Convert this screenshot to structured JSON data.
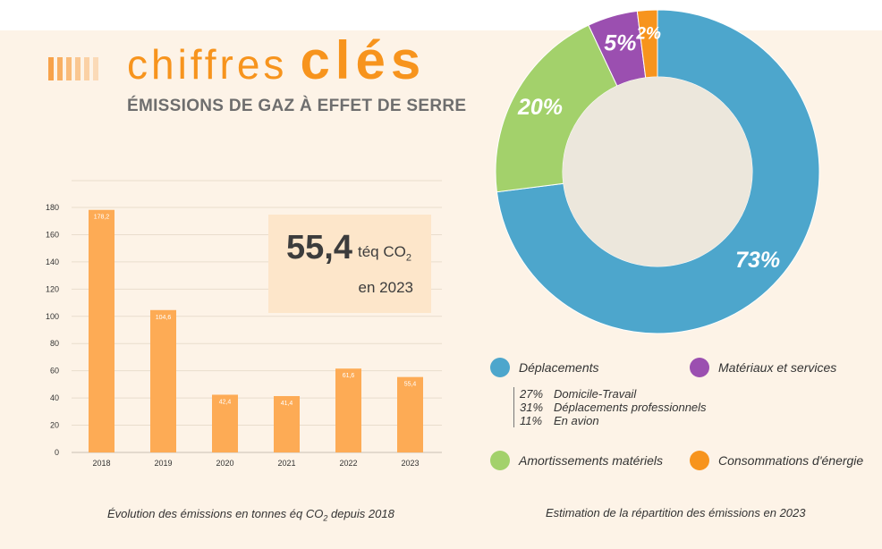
{
  "header": {
    "title_light": "chiffres",
    "title_bold": "clés",
    "subtitle": "ÉMISSIONS DE GAZ À EFFET DE SERRE"
  },
  "highlight": {
    "value": "55,4",
    "unit": "téq CO",
    "unit_sub": "2",
    "year_text": "en 2023"
  },
  "colors": {
    "accent_orange": "#f7941d",
    "bar": "#fdab55",
    "deplacements": "#4da6cc",
    "amortissements": "#a3d16b",
    "materiaux": "#9b4fb0",
    "energie": "#f7941d",
    "donut_center": "#ece7dc",
    "background": "#fdf3e7"
  },
  "chart_data": [
    {
      "type": "bar",
      "categories": [
        "2018",
        "2019",
        "2020",
        "2021",
        "2022",
        "2023"
      ],
      "values": [
        178.2,
        104.6,
        42.4,
        41.4,
        61.6,
        55.4
      ],
      "value_labels": [
        "178,2",
        "104,6",
        "42,4",
        "41,4",
        "61,6",
        "55,4"
      ],
      "ylim": [
        0,
        180
      ],
      "yticks": [
        "0",
        "20",
        "40",
        "60",
        "80",
        "100",
        "120",
        "140",
        "160",
        "180"
      ],
      "grid": true,
      "caption_before": "Évolution des émissions en tonnes éq CO",
      "caption_sub": "2",
      "caption_after": " depuis 2018"
    },
    {
      "type": "pie",
      "donut": true,
      "slices": [
        {
          "name": "Déplacements",
          "value": 73,
          "label": "73%",
          "color": "#4da6cc"
        },
        {
          "name": "Amortissements matériels",
          "value": 20,
          "label": "20%",
          "color": "#a3d16b"
        },
        {
          "name": "Matériaux et services",
          "value": 5,
          "label": "5%",
          "color": "#9b4fb0"
        },
        {
          "name": "Consommations d'énergie",
          "value": 2,
          "label": "2%",
          "color": "#f7941d"
        }
      ],
      "deplacements_detail": [
        {
          "pct": "27%",
          "label": "Domicile-Travail"
        },
        {
          "pct": "31%",
          "label": "Déplacements professionnels"
        },
        {
          "pct": "11%",
          "label": "En avion"
        }
      ],
      "caption": "Estimation de la répartition des émissions en 2023"
    }
  ]
}
